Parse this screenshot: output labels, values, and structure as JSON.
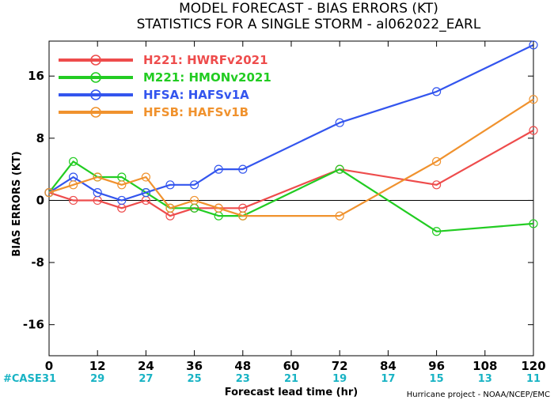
{
  "title_line1": "MODEL FORECAST - BIAS ERRORS (KT)",
  "title_line2": "STATISTICS FOR A SINGLE STORM - al062022_EARL",
  "credit": "Hurricane project - NOAA/NCEP/EMC",
  "case_label": "#CASE",
  "case_counts": [
    "31",
    "29",
    "27",
    "25",
    "23",
    "21",
    "19",
    "17",
    "15",
    "13",
    "11"
  ],
  "case_color": "#18b3c4",
  "chart_data": {
    "type": "line",
    "xlabel": "Forecast lead time (hr)",
    "ylabel": "BIAS ERRORS (KT)",
    "xlim": [
      0,
      120
    ],
    "ylim": [
      -20,
      20.5
    ],
    "xticks": [
      0,
      12,
      24,
      36,
      48,
      60,
      72,
      84,
      96,
      108,
      120
    ],
    "yticks": [
      -16,
      -8,
      0,
      8,
      16
    ],
    "grid": false,
    "zero_line": true,
    "legend_position": "top-left",
    "series": [
      {
        "name": "H221: HWRFv2021",
        "color": "#ee4c4c",
        "x": [
          0,
          6,
          12,
          18,
          24,
          30,
          36,
          42,
          48,
          72,
          96,
          120
        ],
        "y": [
          1,
          0,
          0,
          -1,
          0,
          -2,
          -1,
          -1,
          -1,
          4,
          2,
          9
        ]
      },
      {
        "name": "M221: HMONv2021",
        "color": "#22cc22",
        "x": [
          0,
          6,
          12,
          18,
          24,
          30,
          36,
          42,
          48,
          72,
          96,
          120
        ],
        "y": [
          1,
          5,
          3,
          3,
          1,
          -1,
          -1,
          -2,
          -2,
          4,
          -4,
          -3
        ]
      },
      {
        "name": "HFSA: HAFSv1A",
        "color": "#3355ee",
        "x": [
          0,
          6,
          12,
          18,
          24,
          30,
          36,
          42,
          48,
          72,
          96,
          120
        ],
        "y": [
          1,
          3,
          1,
          0,
          1,
          2,
          2,
          4,
          4,
          10,
          14,
          20
        ]
      },
      {
        "name": "HFSB: HAFSv1B",
        "color": "#f0922e",
        "x": [
          0,
          6,
          12,
          18,
          24,
          30,
          36,
          42,
          48,
          72,
          96,
          120
        ],
        "y": [
          1,
          2,
          3,
          2,
          3,
          -1,
          0,
          -1,
          -2,
          -2,
          5,
          13
        ]
      }
    ]
  }
}
